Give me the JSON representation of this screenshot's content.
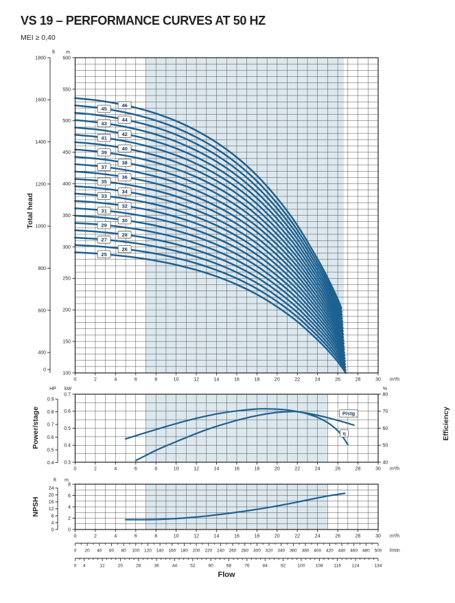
{
  "title": "VS 19 – PERFORMANCE CURVES AT 50 HZ",
  "subtitle": "MEI ≥ 0,40",
  "colors": {
    "curve": "#1d6191",
    "band": "#dce7ee",
    "grid": "#4d4d4f",
    "frame": "#1f1f21",
    "text": "#231f20",
    "stage_label_text": "#14365c"
  },
  "axes_titles": {
    "head": "Total head",
    "power": "Power/stage",
    "efficiency": "Efficiency",
    "npsh": "NPSH",
    "flow": "Flow"
  },
  "units": {
    "m3h": "m³/h",
    "lmin": "l/min",
    "m": "m",
    "ft": "ft",
    "kw": "kW",
    "hp": "HP",
    "percent": "%"
  },
  "flow_scale": {
    "m3h_ticks": [
      0,
      2,
      4,
      6,
      8,
      10,
      12,
      14,
      16,
      18,
      20,
      22,
      24,
      26,
      28,
      30
    ],
    "lmin_ticks": [
      0,
      20,
      40,
      60,
      80,
      100,
      120,
      140,
      160,
      180,
      200,
      220,
      240,
      260,
      280,
      300,
      320,
      340,
      360,
      380,
      400,
      420,
      440,
      460,
      480,
      500
    ],
    "gpm_ticks": [
      0,
      4,
      12,
      20,
      28,
      36,
      44,
      52,
      60,
      68,
      76,
      84,
      92,
      100,
      108,
      116,
      124,
      134
    ]
  },
  "chart_data": [
    {
      "id": "total_head",
      "type": "line",
      "ylabel": "Total head",
      "xlabel": "Flow",
      "x_range_m3h": [
        0,
        30
      ],
      "y_range_m": [
        100,
        600
      ],
      "m_ticks": [
        600,
        550,
        500,
        450,
        400,
        350,
        300,
        250,
        200,
        150,
        100
      ],
      "ft_ticks": [
        1800,
        1600,
        1400,
        1200,
        1000,
        800,
        600,
        400,
        0
      ],
      "duty_band_m3h": [
        7,
        26.6
      ],
      "stages": [
        25,
        26,
        27,
        28,
        29,
        30,
        31,
        32,
        33,
        34,
        35,
        36,
        37,
        38,
        39,
        40,
        41,
        42,
        43,
        44,
        45,
        46
      ],
      "stage_curve_flow_m3h": [
        0,
        2,
        4,
        6,
        8,
        10,
        12,
        14,
        16,
        18,
        20,
        22,
        24,
        25,
        26,
        26.8
      ],
      "stage_curve_head_m_per_stage": [
        11.65,
        11.58,
        11.47,
        11.32,
        11.12,
        10.86,
        10.53,
        10.12,
        9.61,
        8.98,
        8.2,
        7.26,
        6.1,
        5.45,
        4.72,
        4.0
      ],
      "stage_end_flow_m3h_first": 26.8,
      "stage_end_flow_m3h_step": -0.021,
      "stage_label_flow_odd": 2.86,
      "stage_label_flow_even": 4.9
    },
    {
      "id": "power_efficiency",
      "type": "line",
      "ylabel": "Power/stage",
      "ylabel_right": "Efficiency",
      "kw_range": [
        0.3,
        0.7
      ],
      "percent_range": [
        40,
        80
      ],
      "kw_ticks": [
        0.7,
        0.6,
        0.5,
        0.4,
        0.3
      ],
      "hp_ticks": [
        0.9,
        0.8,
        0.7,
        0.6,
        0.5,
        0.4
      ],
      "percent_ticks": [
        80,
        70,
        60,
        50,
        40
      ],
      "duty_band_m3h": [
        7,
        25
      ],
      "series": [
        {
          "name": "P/stg",
          "axis": "kW",
          "points": [
            [
              5,
              0.437
            ],
            [
              6,
              0.456
            ],
            [
              8,
              0.492
            ],
            [
              10,
              0.527
            ],
            [
              12,
              0.558
            ],
            [
              14,
              0.584
            ],
            [
              16,
              0.602
            ],
            [
              18,
              0.613
            ],
            [
              19,
              0.614
            ],
            [
              20,
              0.612
            ],
            [
              21,
              0.607
            ],
            [
              22,
              0.598
            ],
            [
              23,
              0.588
            ],
            [
              24,
              0.576
            ],
            [
              25,
              0.562
            ],
            [
              26,
              0.546
            ],
            [
              27,
              0.529
            ],
            [
              27.6,
              0.518
            ]
          ]
        },
        {
          "name": "η",
          "axis": "%",
          "points": [
            [
              6,
              41
            ],
            [
              7,
              44
            ],
            [
              8,
              47
            ],
            [
              9,
              49.6
            ],
            [
              10,
              52.1
            ],
            [
              11,
              54.5
            ],
            [
              12,
              56.9
            ],
            [
              13,
              59.1
            ],
            [
              14,
              61.1
            ],
            [
              15,
              62.9
            ],
            [
              16,
              64.6
            ],
            [
              17,
              66.1
            ],
            [
              18,
              67.4
            ],
            [
              19,
              68.5
            ],
            [
              20,
              69.3
            ],
            [
              21,
              69.7
            ],
            [
              21.8,
              69.8
            ],
            [
              22.5,
              69.2
            ],
            [
              23,
              68.4
            ],
            [
              24,
              66.4
            ],
            [
              25,
              63.3
            ],
            [
              26,
              58.6
            ],
            [
              26.5,
              54.9
            ],
            [
              27,
              50.3
            ]
          ]
        }
      ]
    },
    {
      "id": "npsh",
      "type": "line",
      "ylabel": "NPSH",
      "m_range": [
        0,
        8
      ],
      "m_ticks": [
        8,
        6,
        4,
        2,
        0
      ],
      "ft_ticks": [
        24,
        20,
        16,
        12,
        8,
        4,
        0
      ],
      "duty_band_m3h": [
        7,
        25
      ],
      "points": [
        [
          5,
          1.75
        ],
        [
          6,
          1.74
        ],
        [
          7,
          1.74
        ],
        [
          8,
          1.77
        ],
        [
          9,
          1.83
        ],
        [
          10,
          1.93
        ],
        [
          11,
          2.06
        ],
        [
          12,
          2.21
        ],
        [
          13,
          2.39
        ],
        [
          14,
          2.59
        ],
        [
          15,
          2.81
        ],
        [
          16,
          3.04
        ],
        [
          17,
          3.29
        ],
        [
          18,
          3.56
        ],
        [
          19,
          3.85
        ],
        [
          20,
          4.16
        ],
        [
          21,
          4.5
        ],
        [
          22,
          4.85
        ],
        [
          23,
          5.21
        ],
        [
          24,
          5.57
        ],
        [
          25,
          5.92
        ],
        [
          26,
          6.2
        ],
        [
          26.7,
          6.38
        ]
      ]
    }
  ]
}
